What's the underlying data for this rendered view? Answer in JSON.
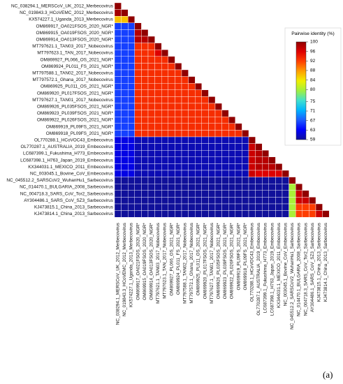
{
  "chart_data": {
    "type": "heatmap",
    "colorbar_title": "Pairwise identity (%)",
    "figure_label": "(a)",
    "categories": [
      "NC_038294.1_MERSCoV_UK_2012_Merbecovirus",
      "NC_019843.3_HCoVEMC_2012_Merbecovirus",
      "KX574227.1_Uganda_2013_Merbecovirus",
      "OM869917_OA021FSOS_2020_NGR*",
      "OM869915_OA019FSOS_2020_NGR*",
      "OM869914_OA013FSOS_2020_NGR*",
      "MT797621.1_TAN03_2017_Nobecovirus",
      "MT797623.1_TAN_2017_Nobecovirus",
      "OM869927_PL066_OS_2021_NGR*",
      "OM869924_PL011_FS_2021_NGR*",
      "MT797588.1_TAN02_2017_Nobecovirus",
      "MT797572.1_Ghana_2017_Nobecovirus",
      "OM869925_PL011_OS_2021_NGR*",
      "OM869920_PL017FSOS_2021_NGR*",
      "MT797627.1_TAN01_2017_Nobecovirus",
      "OM869926_PL035FSOS_2021_NGR*",
      "OM869923_PL039FSOS_2021_NGR*",
      "OM869922_PL026FSOS_2021_NGR*",
      "OM869919_PL09FS_2021_NGR*",
      "OM869918_PL09FS_2021_NGR*",
      "OL770288.1_HCoVOC43_Embecovirus",
      "OL770287.1_AUSTRALIA_2019_Embecovirus",
      "LC687399.1_Fukushima_H773_Embecovirus",
      "LC687398.1_H763_Japan_2019_Embecovirus",
      "KX344031.1_MEXICO_2011_Embecovirus",
      "NC_003045.1_Bovine_CoV_Embecovirus",
      "NC_045512.2_SARSCoV2_WuhanHu1_Sarbecovirus",
      "NC_014470.1_BULGARIA_2008_Sarbecovirus",
      "NC_004718.3_SARS_CoV_Tor2_Sarbecovirus",
      "AY304486.1_SARS_CoV_SZ3_Sarbecovirus",
      "KJ473815.1_China_2013_Sarbecovirus",
      "KJ473814.1_China_2013_Sarbecovirus"
    ],
    "matrix": [
      [
        100
      ],
      [
        99,
        100
      ],
      [
        86,
        86,
        100
      ],
      [
        66,
        66,
        66,
        100
      ],
      [
        66,
        66,
        66,
        98,
        100
      ],
      [
        66,
        66,
        66,
        98,
        98,
        100
      ],
      [
        66,
        66,
        66,
        93,
        93,
        93,
        100
      ],
      [
        66,
        66,
        66,
        93,
        93,
        93,
        96,
        100
      ],
      [
        66,
        66,
        66,
        93,
        93,
        93,
        93,
        93,
        100
      ],
      [
        66,
        66,
        66,
        93,
        93,
        93,
        93,
        93,
        93,
        100
      ],
      [
        66,
        66,
        66,
        93,
        93,
        93,
        93,
        93,
        93,
        93,
        100
      ],
      [
        66,
        66,
        66,
        93,
        93,
        93,
        93,
        93,
        93,
        93,
        93,
        100
      ],
      [
        66,
        66,
        66,
        93,
        93,
        93,
        93,
        93,
        93,
        93,
        93,
        93,
        100
      ],
      [
        66,
        66,
        66,
        93,
        93,
        93,
        93,
        93,
        93,
        93,
        93,
        93,
        93,
        100
      ],
      [
        66,
        66,
        66,
        93,
        93,
        93,
        93,
        93,
        93,
        93,
        93,
        93,
        93,
        93,
        100
      ],
      [
        66,
        66,
        66,
        93,
        93,
        93,
        93,
        93,
        93,
        93,
        93,
        93,
        93,
        93,
        93,
        100
      ],
      [
        66,
        66,
        66,
        93,
        93,
        93,
        93,
        93,
        93,
        93,
        93,
        93,
        93,
        93,
        93,
        93,
        100
      ],
      [
        66,
        66,
        66,
        93,
        93,
        93,
        93,
        93,
        93,
        93,
        93,
        93,
        93,
        93,
        93,
        93,
        93,
        100
      ],
      [
        66,
        66,
        66,
        93,
        93,
        93,
        93,
        93,
        93,
        93,
        93,
        93,
        93,
        93,
        93,
        93,
        93,
        93,
        100
      ],
      [
        66,
        66,
        66,
        93,
        93,
        93,
        93,
        93,
        93,
        93,
        93,
        93,
        93,
        93,
        93,
        93,
        93,
        93,
        93,
        100
      ],
      [
        62,
        62,
        62,
        60,
        60,
        60,
        60,
        60,
        60,
        60,
        60,
        60,
        60,
        60,
        60,
        60,
        60,
        60,
        60,
        60,
        100
      ],
      [
        62,
        62,
        62,
        60,
        60,
        60,
        60,
        60,
        60,
        60,
        60,
        60,
        60,
        60,
        60,
        60,
        60,
        60,
        60,
        60,
        97,
        100
      ],
      [
        62,
        62,
        62,
        60,
        60,
        60,
        60,
        60,
        60,
        60,
        60,
        60,
        60,
        60,
        60,
        60,
        60,
        60,
        60,
        60,
        97,
        98,
        100
      ],
      [
        62,
        62,
        62,
        60,
        60,
        60,
        60,
        60,
        60,
        60,
        60,
        60,
        60,
        60,
        60,
        60,
        60,
        60,
        60,
        60,
        97,
        98,
        98,
        100
      ],
      [
        62,
        62,
        62,
        60,
        60,
        60,
        60,
        60,
        60,
        60,
        60,
        60,
        60,
        60,
        60,
        60,
        60,
        60,
        60,
        60,
        97,
        98,
        98,
        98,
        100
      ],
      [
        62,
        62,
        62,
        60,
        60,
        60,
        60,
        60,
        60,
        60,
        60,
        60,
        60,
        60,
        60,
        60,
        60,
        60,
        60,
        60,
        97,
        96,
        96,
        96,
        96,
        100
      ],
      [
        58,
        58,
        58,
        57,
        57,
        57,
        57,
        57,
        57,
        57,
        57,
        57,
        57,
        57,
        57,
        57,
        57,
        57,
        57,
        57,
        56,
        56,
        56,
        56,
        56,
        56,
        100
      ],
      [
        58,
        58,
        58,
        57,
        57,
        57,
        57,
        57,
        57,
        57,
        57,
        57,
        57,
        57,
        57,
        57,
        57,
        57,
        57,
        57,
        56,
        56,
        56,
        56,
        56,
        56,
        80,
        100
      ],
      [
        58,
        58,
        58,
        57,
        57,
        57,
        57,
        57,
        57,
        57,
        57,
        57,
        57,
        57,
        57,
        57,
        57,
        57,
        57,
        57,
        56,
        56,
        56,
        56,
        56,
        56,
        80,
        97,
        100
      ],
      [
        58,
        58,
        58,
        57,
        57,
        57,
        57,
        57,
        57,
        57,
        57,
        57,
        57,
        57,
        57,
        57,
        57,
        57,
        57,
        57,
        56,
        56,
        56,
        56,
        56,
        56,
        80,
        97,
        97,
        100
      ],
      [
        58,
        58,
        58,
        57,
        57,
        57,
        57,
        57,
        57,
        57,
        57,
        57,
        57,
        57,
        57,
        57,
        57,
        57,
        57,
        57,
        56,
        56,
        56,
        56,
        56,
        56,
        80,
        92,
        92,
        92,
        100
      ],
      [
        58,
        58,
        58,
        57,
        57,
        57,
        57,
        57,
        57,
        57,
        57,
        57,
        57,
        57,
        57,
        57,
        57,
        57,
        57,
        57,
        56,
        56,
        56,
        56,
        56,
        56,
        80,
        92,
        92,
        92,
        97,
        100
      ]
    ],
    "zlim": [
      59,
      100
    ],
    "zticks": [
      100,
      96,
      92,
      88,
      84,
      80,
      75,
      71,
      67,
      63,
      59
    ],
    "colors": [
      "#10109a",
      "#0000ff",
      "#1e5aff",
      "#00b4ff",
      "#40e0d0",
      "#a0f040",
      "#f0f000",
      "#ffa000",
      "#ff4000",
      "#e00000",
      "#900000"
    ]
  }
}
